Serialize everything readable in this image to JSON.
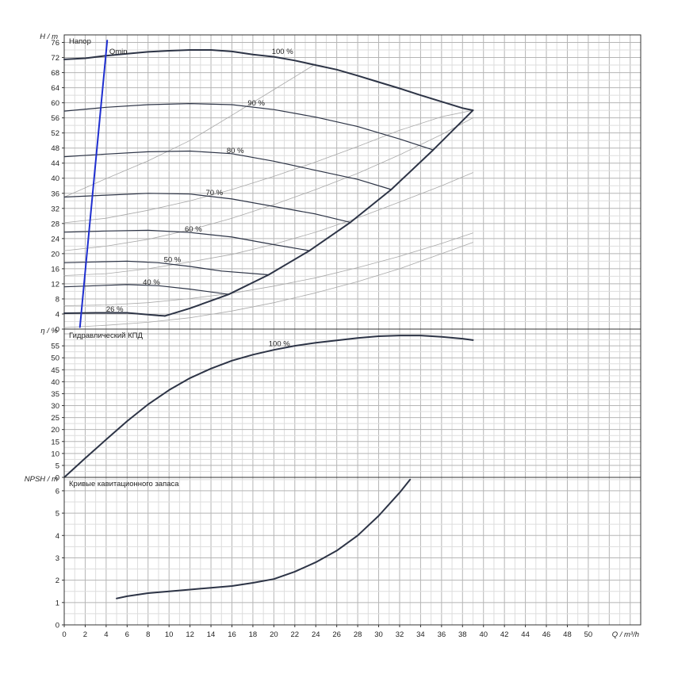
{
  "chart_data": [
    {
      "type": "line",
      "title": "Напор",
      "ylabel": "H / m",
      "xlim": [
        0,
        55
      ],
      "ylim": [
        0,
        78
      ],
      "yticks": [
        0,
        4,
        8,
        12,
        16,
        20,
        24,
        28,
        32,
        36,
        40,
        44,
        48,
        52,
        56,
        60,
        64,
        68,
        72,
        76
      ],
      "grid": true,
      "series": [
        {
          "name": "100 %",
          "x": [
            0,
            2,
            4,
            6,
            8,
            10,
            12,
            14,
            16,
            18,
            20,
            22,
            24,
            26,
            28,
            30,
            32,
            34,
            36,
            38,
            39
          ],
          "y": [
            71.5,
            71.8,
            72.5,
            73.0,
            73.5,
            73.8,
            74.0,
            74.0,
            73.6,
            72.8,
            72.2,
            71.2,
            70.0,
            68.8,
            67.2,
            65.5,
            63.8,
            62.0,
            60.3,
            58.6,
            58.0
          ]
        },
        {
          "name": "90 %",
          "x": [
            0,
            4,
            8,
            12,
            16,
            20,
            24,
            28,
            32,
            35.2
          ],
          "y": [
            57.8,
            58.8,
            59.5,
            59.8,
            59.5,
            58.2,
            56.2,
            53.7,
            50.4,
            47.5
          ]
        },
        {
          "name": "80 %",
          "x": [
            0,
            4,
            8,
            12,
            16,
            20,
            24,
            28,
            31.2
          ],
          "y": [
            45.7,
            46.4,
            47.0,
            47.2,
            46.5,
            44.5,
            42.1,
            39.7,
            37.0
          ]
        },
        {
          "name": "70 %",
          "x": [
            0,
            4,
            8,
            12,
            16,
            20,
            24,
            27.3
          ],
          "y": [
            35.0,
            35.5,
            36.0,
            35.8,
            34.5,
            32.5,
            30.5,
            28.3
          ]
        },
        {
          "name": "60 %",
          "x": [
            0,
            4,
            8,
            12,
            16,
            20,
            23.4
          ],
          "y": [
            25.7,
            26.0,
            26.2,
            25.6,
            24.4,
            22.4,
            20.8
          ]
        },
        {
          "name": "50 %",
          "x": [
            0,
            3,
            6,
            9,
            12,
            15,
            19.5
          ],
          "y": [
            17.6,
            17.8,
            18.0,
            17.6,
            16.6,
            15.4,
            14.4
          ]
        },
        {
          "name": "40 %",
          "x": [
            0,
            3,
            6,
            9,
            12,
            15.7
          ],
          "y": [
            11.2,
            11.5,
            11.8,
            11.5,
            10.6,
            9.2
          ]
        },
        {
          "name": "26 %",
          "x": [
            0,
            3,
            6,
            9,
            9.6
          ],
          "y": [
            4.2,
            4.3,
            4.3,
            3.6,
            3.5
          ]
        },
        {
          "name": "Qmin",
          "x": [
            1.5,
            4.1
          ],
          "y": [
            0.5,
            76.5
          ]
        },
        {
          "name": "envelope",
          "x": [
            9.6,
            12,
            15.7,
            19.5,
            23.4,
            27.3,
            31.2,
            35.2,
            39
          ],
          "y": [
            3.5,
            5.5,
            9.2,
            14.4,
            20.8,
            28.3,
            37.0,
            47.5,
            58.0
          ]
        },
        {
          "name": "parabola-1",
          "x": [
            0,
            4,
            8,
            12,
            16,
            20,
            24,
            28,
            32,
            36,
            39
          ],
          "y": [
            0.4,
            1.0,
            1.8,
            3.0,
            4.8,
            7.0,
            9.6,
            12.6,
            16.0,
            20.0,
            23.0
          ]
        },
        {
          "name": "parabola-2",
          "x": [
            0,
            4,
            8,
            12,
            16,
            20,
            24,
            28,
            32,
            36,
            39
          ],
          "y": [
            6.2,
            6.4,
            7.0,
            8.1,
            9.5,
            11.4,
            13.6,
            16.3,
            19.3,
            22.7,
            25.5
          ]
        },
        {
          "name": "parabola-3",
          "x": [
            0,
            4,
            8,
            12,
            16,
            20,
            24,
            28,
            32,
            36,
            39
          ],
          "y": [
            14.2,
            14.7,
            16.0,
            17.8,
            19.8,
            22.5,
            25.7,
            29.5,
            33.7,
            38.0,
            41.5
          ]
        },
        {
          "name": "parabola-4",
          "x": [
            0,
            4,
            8,
            12,
            16,
            20,
            24,
            28,
            32,
            36,
            39
          ],
          "y": [
            20.8,
            22.0,
            23.8,
            26.3,
            29.4,
            33.0,
            37.0,
            41.3,
            46.2,
            51.6,
            56.0
          ]
        },
        {
          "name": "parabola-5",
          "x": [
            0,
            4,
            8,
            12,
            16,
            20,
            24,
            28,
            32,
            36,
            39
          ],
          "y": [
            28.2,
            29.4,
            31.5,
            34.0,
            37.0,
            40.5,
            44.3,
            48.4,
            52.7,
            56.3,
            58.0
          ]
        },
        {
          "name": "parabola-6",
          "x": [
            0,
            4,
            8,
            12,
            16,
            20,
            24
          ],
          "y": [
            35.0,
            39.9,
            44.6,
            50.0,
            56.7,
            63.5,
            70.3
          ]
        }
      ],
      "labels": [
        {
          "text": "100 %",
          "x": 19.8,
          "y": 73.0
        },
        {
          "text": "90 %",
          "x": 17.5,
          "y": 59.3
        },
        {
          "text": "80 %",
          "x": 15.5,
          "y": 46.7
        },
        {
          "text": "70 %",
          "x": 13.5,
          "y": 35.5
        },
        {
          "text": "60 %",
          "x": 11.5,
          "y": 25.9
        },
        {
          "text": "50 %",
          "x": 9.5,
          "y": 17.8
        },
        {
          "text": "40 %",
          "x": 7.5,
          "y": 11.8
        },
        {
          "text": "26 %",
          "x": 4.0,
          "y": 4.6
        },
        {
          "text": "Qmin",
          "x": 4.3,
          "y": 73.0
        }
      ]
    },
    {
      "type": "line",
      "title": "Гидравлический КПД",
      "ylabel": "η / %",
      "xlim": [
        0,
        55
      ],
      "ylim": [
        0,
        62
      ],
      "yticks": [
        0,
        5,
        10,
        15,
        20,
        25,
        30,
        35,
        40,
        45,
        50,
        55
      ],
      "grid": true,
      "series": [
        {
          "name": "100 %",
          "x": [
            0,
            2,
            4,
            6,
            8,
            10,
            12,
            14,
            16,
            18,
            20,
            22,
            24,
            26,
            28,
            30,
            32,
            34,
            36,
            38,
            39
          ],
          "y": [
            0,
            8,
            15.8,
            23.5,
            30.5,
            36.5,
            41.5,
            45.5,
            48.8,
            51.3,
            53.3,
            55.0,
            56.3,
            57.3,
            58.3,
            59.0,
            59.3,
            59.3,
            58.8,
            58.0,
            57.4
          ]
        }
      ],
      "labels": [
        {
          "text": "100 %",
          "x": 19.5,
          "y": 54.8
        }
      ]
    },
    {
      "type": "line",
      "title": "Кривые кавитационного запаса",
      "ylabel": "NPSH / m",
      "xlabel": "Q / m³/h",
      "xlim": [
        0,
        55
      ],
      "ylim": [
        0,
        6.6
      ],
      "yticks": [
        0,
        1,
        2,
        3,
        4,
        5,
        6
      ],
      "xticks": [
        0,
        2,
        4,
        6,
        8,
        10,
        12,
        14,
        16,
        18,
        20,
        22,
        24,
        26,
        28,
        30,
        32,
        34,
        36,
        38,
        40,
        42,
        44,
        46,
        48,
        50
      ],
      "grid": true,
      "series": [
        {
          "name": "NPSH",
          "x": [
            5,
            6,
            8,
            10,
            12,
            14,
            16,
            18,
            20,
            22,
            24,
            26,
            28,
            30,
            32,
            33
          ],
          "y": [
            1.18,
            1.28,
            1.42,
            1.5,
            1.58,
            1.66,
            1.74,
            1.88,
            2.05,
            2.38,
            2.8,
            3.32,
            4.0,
            4.88,
            5.92,
            6.5
          ]
        }
      ]
    }
  ]
}
